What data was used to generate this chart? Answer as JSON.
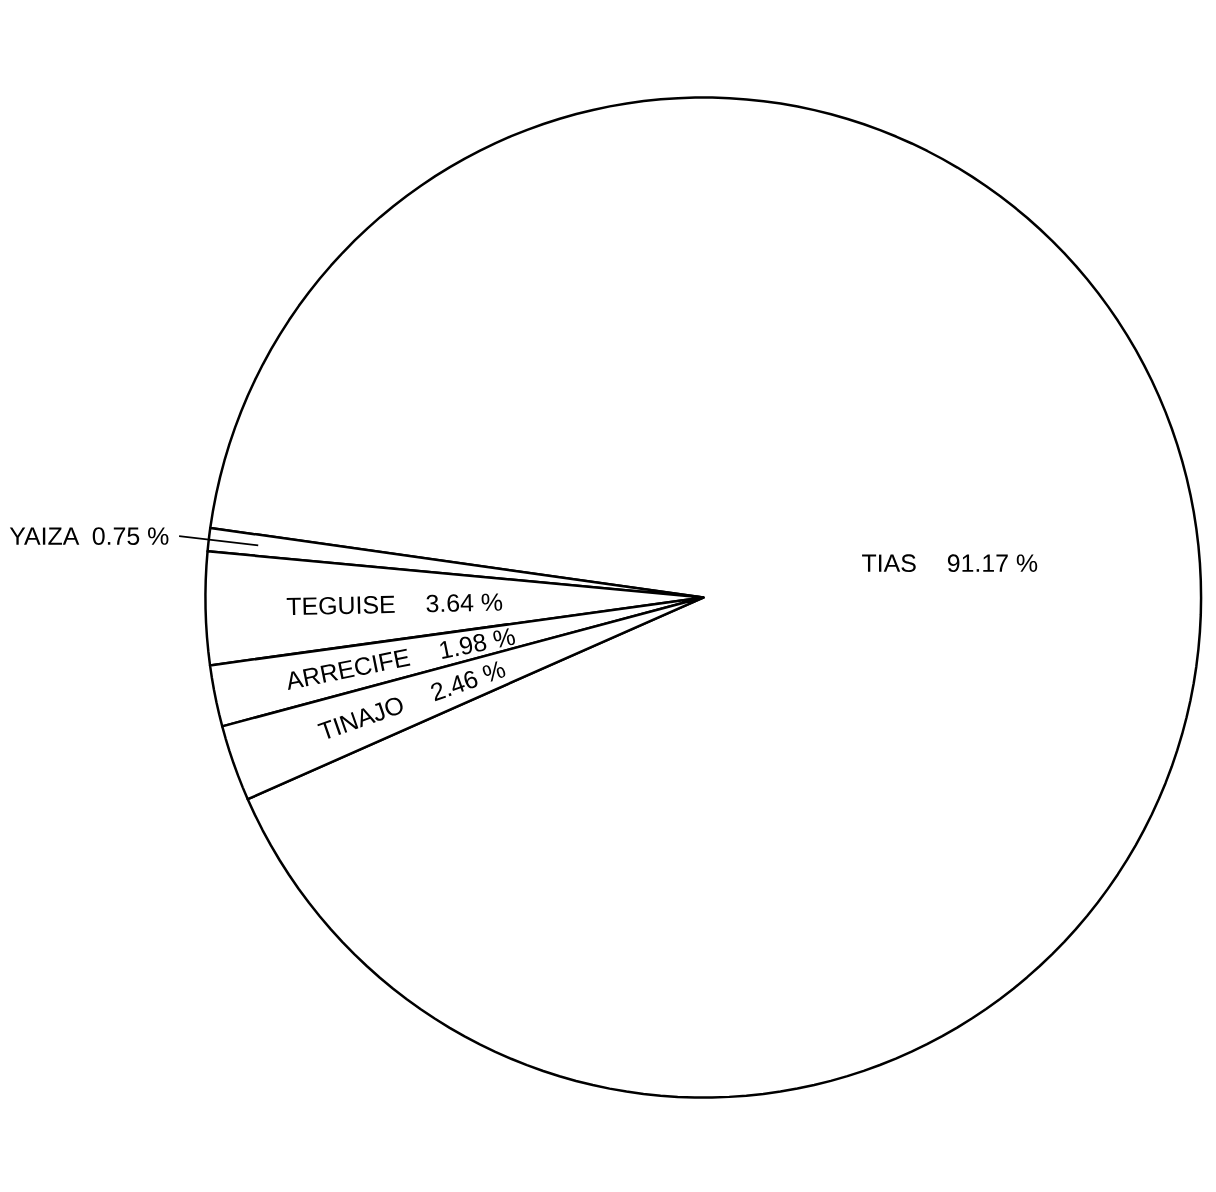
{
  "chart_data": {
    "type": "pie",
    "categories": [
      "TIAS",
      "YAIZA",
      "TEGUISE",
      "ARRECIFE",
      "TINAJO"
    ],
    "values": [
      91.17,
      0.75,
      3.64,
      1.98,
      2.46
    ],
    "value_labels": [
      "91.17 %",
      "0.75 %",
      "3.64 %",
      "1.98 %",
      "2.46 %"
    ],
    "colors": [
      "#ffffff",
      "#ffffff",
      "#ffffff",
      "#ffffff",
      "#ffffff"
    ]
  }
}
